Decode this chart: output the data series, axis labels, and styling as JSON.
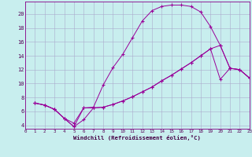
{
  "xlabel": "Windchill (Refroidissement éolien,°C)",
  "bg_color": "#c8eeee",
  "grid_color": "#aaaacc",
  "line_color": "#990099",
  "xlim": [
    0,
    23
  ],
  "ylim": [
    3.5,
    21.8
  ],
  "xtick_vals": [
    0,
    1,
    2,
    3,
    4,
    5,
    6,
    7,
    8,
    9,
    10,
    11,
    12,
    13,
    14,
    15,
    16,
    17,
    18,
    19,
    20,
    21,
    22,
    23
  ],
  "ytick_vals": [
    4,
    6,
    8,
    10,
    12,
    14,
    16,
    18,
    20
  ],
  "curve1_x": [
    1,
    2,
    3,
    4,
    5,
    6,
    7,
    8,
    9,
    10,
    11,
    12,
    13,
    14,
    15,
    16,
    17,
    18,
    19,
    20,
    21,
    22,
    23
  ],
  "curve1_y": [
    7.2,
    6.9,
    6.3,
    5.0,
    3.8,
    6.5,
    6.6,
    9.8,
    12.3,
    14.2,
    16.6,
    19.0,
    20.5,
    21.1,
    21.3,
    21.3,
    21.1,
    20.3,
    18.2,
    15.5,
    12.2,
    12.0,
    10.8
  ],
  "curve2_x": [
    1,
    2,
    3,
    4,
    5,
    6,
    7,
    8,
    9,
    10,
    11,
    12,
    13,
    14,
    15,
    16,
    17,
    18,
    19,
    20,
    21,
    22,
    23
  ],
  "curve2_y": [
    7.2,
    6.9,
    6.3,
    5.0,
    4.3,
    6.5,
    6.5,
    6.6,
    7.0,
    7.5,
    8.1,
    8.8,
    9.5,
    10.4,
    11.2,
    12.1,
    13.0,
    14.0,
    15.0,
    15.5,
    12.2,
    12.0,
    10.8
  ],
  "curve3_x": [
    1,
    2,
    3,
    4,
    5,
    6,
    7,
    8,
    9,
    10,
    11,
    12,
    13,
    14,
    15,
    16,
    17,
    18,
    19,
    20,
    21,
    22,
    23
  ],
  "curve3_y": [
    7.2,
    6.9,
    6.3,
    5.0,
    3.8,
    4.8,
    6.5,
    6.6,
    7.0,
    7.5,
    8.1,
    8.8,
    9.5,
    10.4,
    11.2,
    12.1,
    13.0,
    14.0,
    15.0,
    10.6,
    12.2,
    12.0,
    10.8
  ]
}
